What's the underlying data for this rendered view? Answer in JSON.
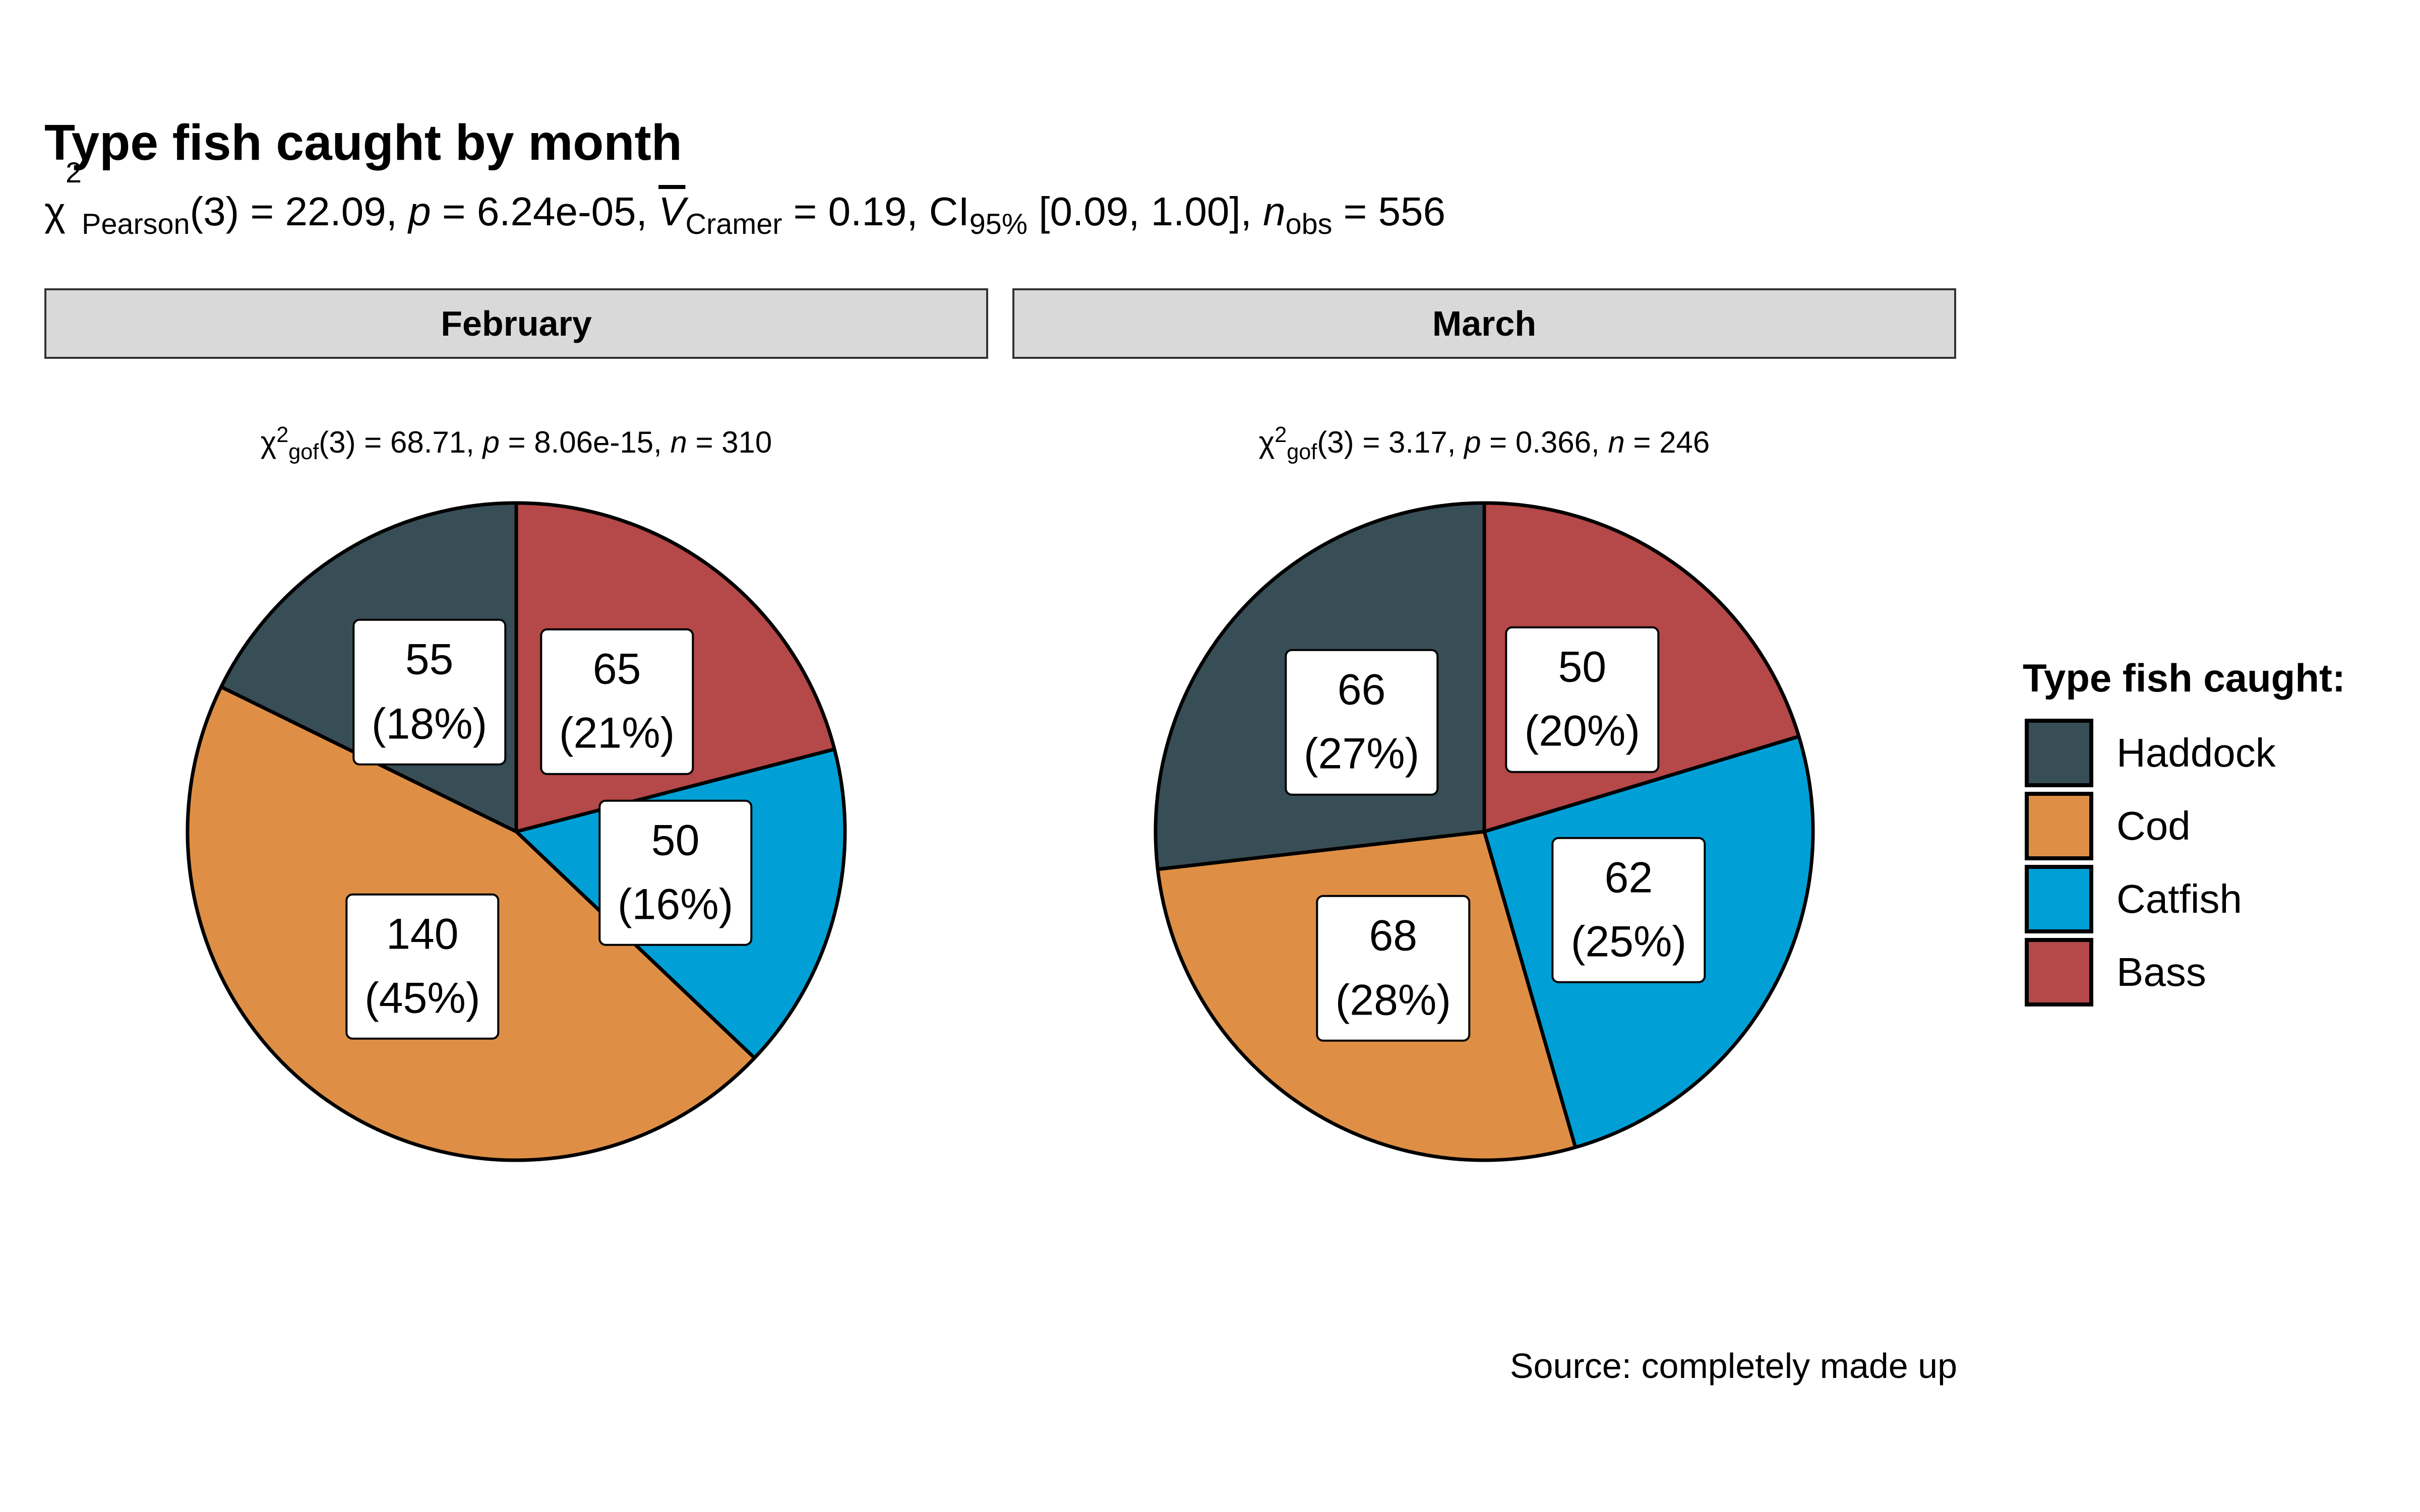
{
  "chart_data": {
    "type": "pie",
    "title": "Type fish caught by month",
    "subtitle_parts": {
      "chi": "χ",
      "sup": "2",
      "sub_pearson": "Pearson",
      "stat": "(3) = 22.09, ",
      "p_label": "p",
      "p_value": " = 6.24e-05, ",
      "v_label": "V",
      "v_sub": "Cramer",
      "v_value": " = 0.19, CI",
      "ci_sub": "95%",
      "ci_value": " [0.09, 1.00], ",
      "n_label": "n",
      "n_sub": "obs",
      "n_value": " = 556"
    },
    "caption": "Source: completely made up",
    "legend": {
      "title": "Type fish caught:",
      "placement": "right",
      "entries": [
        {
          "name": "Haddock",
          "color": "#384E56"
        },
        {
          "name": "Cod",
          "color": "#DE8F45"
        },
        {
          "name": "Catfish",
          "color": "#00A0D6"
        },
        {
          "name": "Bass",
          "color": "#B54848"
        }
      ]
    },
    "categories": [
      "Haddock",
      "Cod",
      "Catfish",
      "Bass"
    ],
    "panels": [
      {
        "facet": "February",
        "stat": {
          "chi": "χ",
          "sup": "2",
          "sub": "gof",
          "text1": "(3) = 68.71,  ",
          "p": "p",
          "text2": " = 8.06e-15,  ",
          "n": "n",
          "text3": " = 310"
        },
        "values": [
          55,
          140,
          50,
          65
        ],
        "labels": [
          "55",
          "140",
          "50",
          "65"
        ],
        "percent_labels": [
          "(18%)",
          "(45%)",
          "(16%)",
          "(21%)"
        ]
      },
      {
        "facet": "March",
        "stat": {
          "chi": "χ",
          "sup": "2",
          "sub": "gof",
          "text1": "(3) = 3.17,  ",
          "p": "p",
          "text2": " = 0.366,  ",
          "n": "n",
          "text3": " = 246"
        },
        "values": [
          66,
          68,
          62,
          50
        ],
        "labels": [
          "66",
          "68",
          "62",
          "50"
        ],
        "percent_labels": [
          "(27%)",
          "(28%)",
          "(25%)",
          "(20%)"
        ]
      }
    ]
  }
}
